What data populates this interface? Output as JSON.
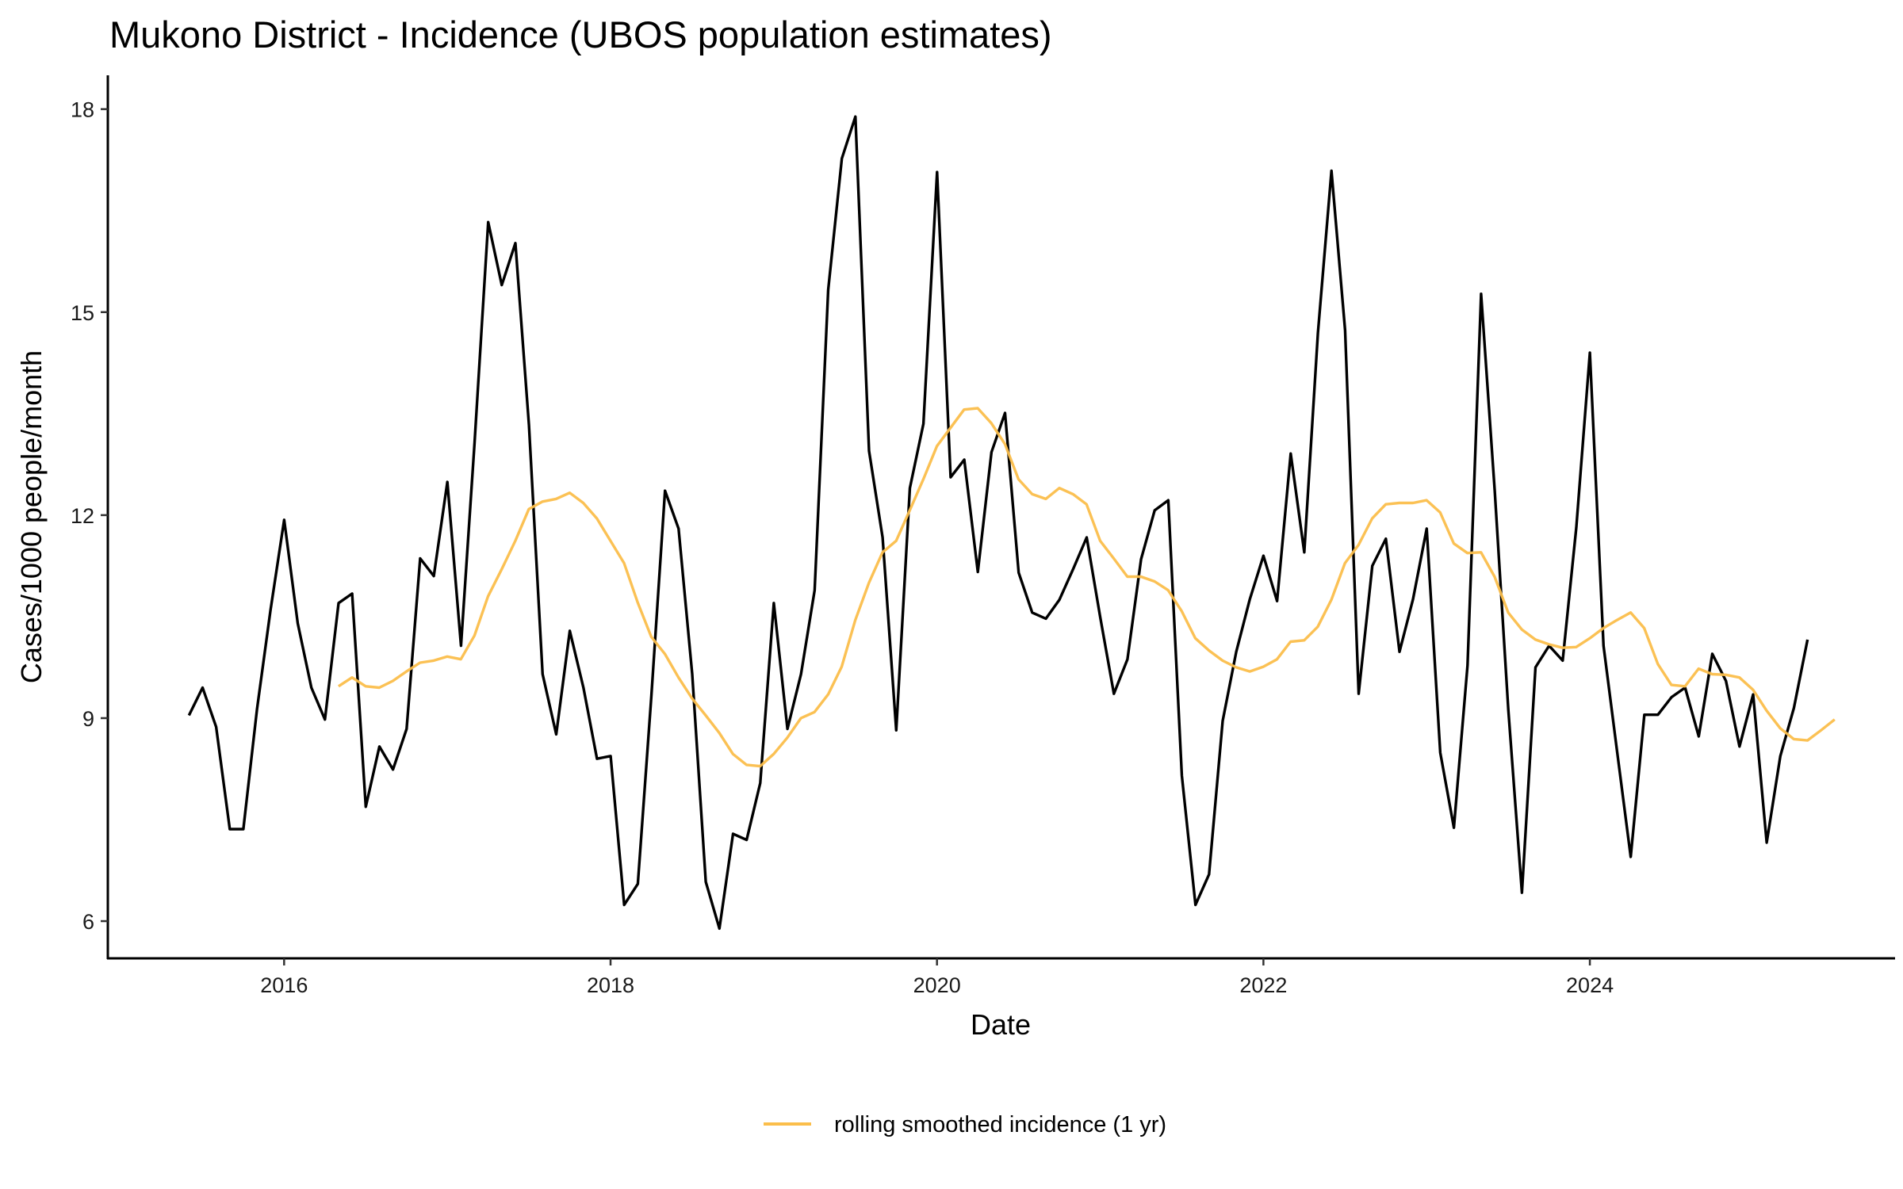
{
  "chart_data": {
    "type": "line",
    "title": "Mukono District - Incidence (UBOS population estimates)",
    "xlabel": "Date",
    "ylabel": "Cases/1000 people/month",
    "xlim": [
      2014.92,
      2025.87
    ],
    "ylim": [
      5.45,
      18.5
    ],
    "x_ticks": [
      2016,
      2018,
      2020,
      2022,
      2024
    ],
    "x_tick_labels": [
      "2016",
      "2018",
      "2020",
      "2022",
      "2024"
    ],
    "y_ticks": [
      6,
      9,
      12,
      15,
      18
    ],
    "y_tick_labels": [
      "6",
      "9",
      "12",
      "15",
      "18"
    ],
    "grid": false,
    "legend_position": "bottom",
    "series": [
      {
        "name": "incidence",
        "color": "#000000",
        "show_in_legend": false,
        "start": 2015.417,
        "step_months": 1,
        "values": [
          9.04,
          9.45,
          8.87,
          7.36,
          7.36,
          9.13,
          10.6,
          11.93,
          10.4,
          9.45,
          8.98,
          10.7,
          10.84,
          7.69,
          8.58,
          8.24,
          8.84,
          11.36,
          11.1,
          12.49,
          10.07,
          13.07,
          16.33,
          15.4,
          16.02,
          13.33,
          9.65,
          8.76,
          10.29,
          9.45,
          8.4,
          8.44,
          6.24,
          6.55,
          9.33,
          12.36,
          11.8,
          9.65,
          6.58,
          5.89,
          7.29,
          7.2,
          8.04,
          10.7,
          8.84,
          9.65,
          10.89,
          15.33,
          17.27,
          17.89,
          12.95,
          11.67,
          8.82,
          12.4,
          13.35,
          17.07,
          12.56,
          12.82,
          11.16,
          12.93,
          13.51,
          11.15,
          10.56,
          10.47,
          10.75,
          11.2,
          11.67,
          10.49,
          9.36,
          9.87,
          11.35,
          12.07,
          12.22,
          8.15,
          6.24,
          6.69,
          8.96,
          9.98,
          10.76,
          11.4,
          10.73,
          12.91,
          11.45,
          14.69,
          17.09,
          14.73,
          9.36,
          11.25,
          11.65,
          9.98,
          10.76,
          11.8,
          8.49,
          7.38,
          9.78,
          15.27,
          12.36,
          9.13,
          6.42,
          9.75,
          10.07,
          9.85,
          11.82,
          14.4,
          10.07,
          8.51,
          6.95,
          9.05,
          9.05,
          9.31,
          9.45,
          8.73,
          9.95,
          9.55,
          8.58,
          9.35,
          7.16,
          8.44,
          9.15,
          10.16
        ]
      },
      {
        "name": "rolling smoothed incidence (1 yr)",
        "color": "#FBBE4B",
        "show_in_legend": true,
        "start": 2016.333,
        "step_months": 1,
        "values": [
          9.47,
          9.6,
          9.47,
          9.45,
          9.55,
          9.69,
          9.82,
          9.85,
          9.91,
          9.87,
          10.22,
          10.8,
          11.2,
          11.62,
          12.09,
          12.2,
          12.24,
          12.33,
          12.18,
          11.95,
          11.62,
          11.29,
          10.71,
          10.2,
          9.95,
          9.6,
          9.29,
          9.04,
          8.78,
          8.47,
          8.31,
          8.29,
          8.47,
          8.71,
          9.0,
          9.09,
          9.35,
          9.76,
          10.45,
          11.0,
          11.45,
          11.62,
          12.07,
          12.53,
          13.02,
          13.29,
          13.56,
          13.58,
          13.36,
          13.05,
          12.53,
          12.31,
          12.24,
          12.4,
          12.31,
          12.16,
          11.62,
          11.36,
          11.09,
          11.09,
          11.02,
          10.89,
          10.58,
          10.18,
          10.0,
          9.85,
          9.75,
          9.69,
          9.76,
          9.87,
          10.13,
          10.15,
          10.35,
          10.75,
          11.29,
          11.56,
          11.95,
          12.16,
          12.18,
          12.18,
          12.22,
          12.04,
          11.58,
          11.44,
          11.45,
          11.09,
          10.56,
          10.31,
          10.16,
          10.09,
          10.04,
          10.05,
          10.18,
          10.33,
          10.45,
          10.56,
          10.33,
          9.8,
          9.49,
          9.47,
          9.73,
          9.65,
          9.64,
          9.6,
          9.42,
          9.11,
          8.85,
          8.69,
          8.67,
          8.82,
          8.98
        ]
      }
    ]
  }
}
